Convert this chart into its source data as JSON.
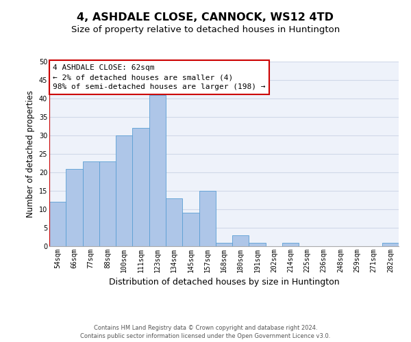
{
  "title": "4, ASHDALE CLOSE, CANNOCK, WS12 4TD",
  "subtitle": "Size of property relative to detached houses in Huntington",
  "xlabel": "Distribution of detached houses by size in Huntington",
  "ylabel": "Number of detached properties",
  "footnote1": "Contains HM Land Registry data © Crown copyright and database right 2024.",
  "footnote2": "Contains public sector information licensed under the Open Government Licence v3.0.",
  "annotation_title": "4 ASHDALE CLOSE: 62sqm",
  "annotation_line2": "← 2% of detached houses are smaller (4)",
  "annotation_line3": "98% of semi-detached houses are larger (198) →",
  "bar_color": "#aec6e8",
  "bar_edge_color": "#5a9fd4",
  "red_line_color": "#cc0000",
  "annotation_box_color": "#cc0000",
  "grid_color": "#d0d8e8",
  "background_color": "#eef2fa",
  "categories": [
    "54sqm",
    "66sqm",
    "77sqm",
    "88sqm",
    "100sqm",
    "111sqm",
    "123sqm",
    "134sqm",
    "145sqm",
    "157sqm",
    "168sqm",
    "180sqm",
    "191sqm",
    "202sqm",
    "214sqm",
    "225sqm",
    "236sqm",
    "248sqm",
    "259sqm",
    "271sqm",
    "282sqm"
  ],
  "values": [
    12,
    21,
    23,
    23,
    30,
    32,
    41,
    13,
    9,
    15,
    1,
    3,
    1,
    0,
    1,
    0,
    0,
    0,
    0,
    0,
    1
  ],
  "ylim": [
    0,
    50
  ],
  "yticks": [
    0,
    5,
    10,
    15,
    20,
    25,
    30,
    35,
    40,
    45,
    50
  ],
  "title_fontsize": 11.5,
  "subtitle_fontsize": 9.5,
  "xlabel_fontsize": 9,
  "ylabel_fontsize": 8.5,
  "tick_fontsize": 7,
  "footnote_fontsize": 6,
  "annotation_fontsize": 8
}
